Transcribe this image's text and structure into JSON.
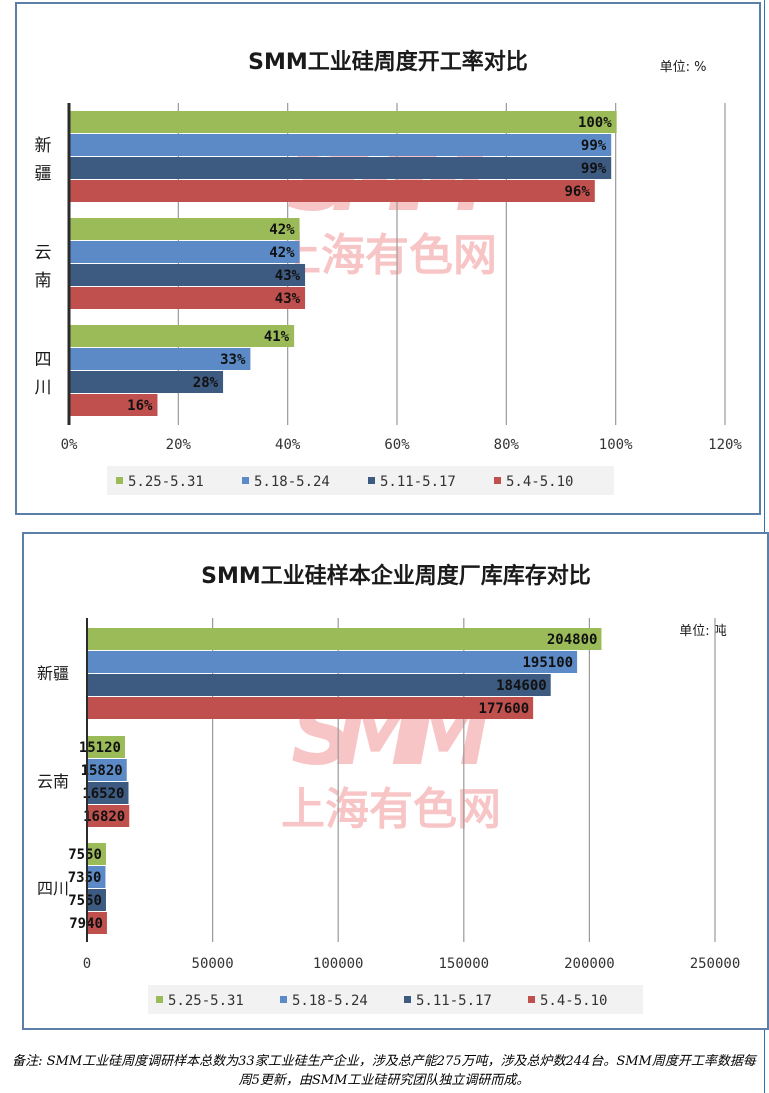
{
  "charts": [
    {
      "id": "chart1",
      "chart_data": {
        "type": "bar",
        "orientation": "horizontal",
        "title": "SMM工业硅周度开工率对比",
        "unit_label": "单位: %",
        "categories": [
          "新疆",
          "云南",
          "四川"
        ],
        "series": [
          {
            "name": "5.25-5.31",
            "color": "#9bbb59",
            "values": [
              100,
              42,
              41
            ]
          },
          {
            "name": "5.18-5.24",
            "color": "#5b8ac6",
            "values": [
              99,
              42,
              33
            ]
          },
          {
            "name": "5.11-5.17",
            "color": "#3d5a80",
            "values": [
              99,
              43,
              28
            ]
          },
          {
            "name": "5.4-5.10",
            "color": "#c0504d",
            "values": [
              96,
              43,
              16
            ]
          }
        ],
        "value_suffix": "%",
        "xlim": [
          0,
          120
        ],
        "xticks": [
          "0%",
          "20%",
          "40%",
          "60%",
          "80%",
          "100%",
          "120%"
        ],
        "xtick_values": [
          0,
          20,
          40,
          60,
          80,
          100,
          120
        ],
        "grid": true,
        "legend_position": "bottom"
      }
    },
    {
      "id": "chart2",
      "chart_data": {
        "type": "bar",
        "orientation": "horizontal",
        "title": "SMM工业硅样本企业周度厂库库存对比",
        "unit_label": "单位: 吨",
        "categories": [
          "新疆",
          "云南",
          "四川"
        ],
        "series": [
          {
            "name": "5.25-5.31",
            "color": "#9bbb59",
            "values": [
              204800,
              15120,
              7550
            ]
          },
          {
            "name": "5.18-5.24",
            "color": "#5b8ac6",
            "values": [
              195100,
              15820,
              7350
            ]
          },
          {
            "name": "5.11-5.17",
            "color": "#3d5a80",
            "values": [
              184600,
              16520,
              7550
            ]
          },
          {
            "name": "5.4-5.10",
            "color": "#c0504d",
            "values": [
              177600,
              16820,
              7940
            ]
          }
        ],
        "value_suffix": "",
        "xlim": [
          0,
          250000
        ],
        "xticks": [
          "0",
          "50000",
          "100000",
          "150000",
          "200000",
          "250000"
        ],
        "xtick_values": [
          0,
          50000,
          100000,
          150000,
          200000,
          250000
        ],
        "grid": true,
        "legend_position": "bottom"
      }
    }
  ],
  "watermark": {
    "logo": "SMM",
    "text": "上海有色网"
  },
  "footnote": "备注: SMM工业硅周度调研样本总数为33家工业硅生产企业，涉及总产能275万吨，涉及总炉数244台。SMM周度开工率数据每周5更新，由SMM工业硅研究团队独立调研而成。"
}
